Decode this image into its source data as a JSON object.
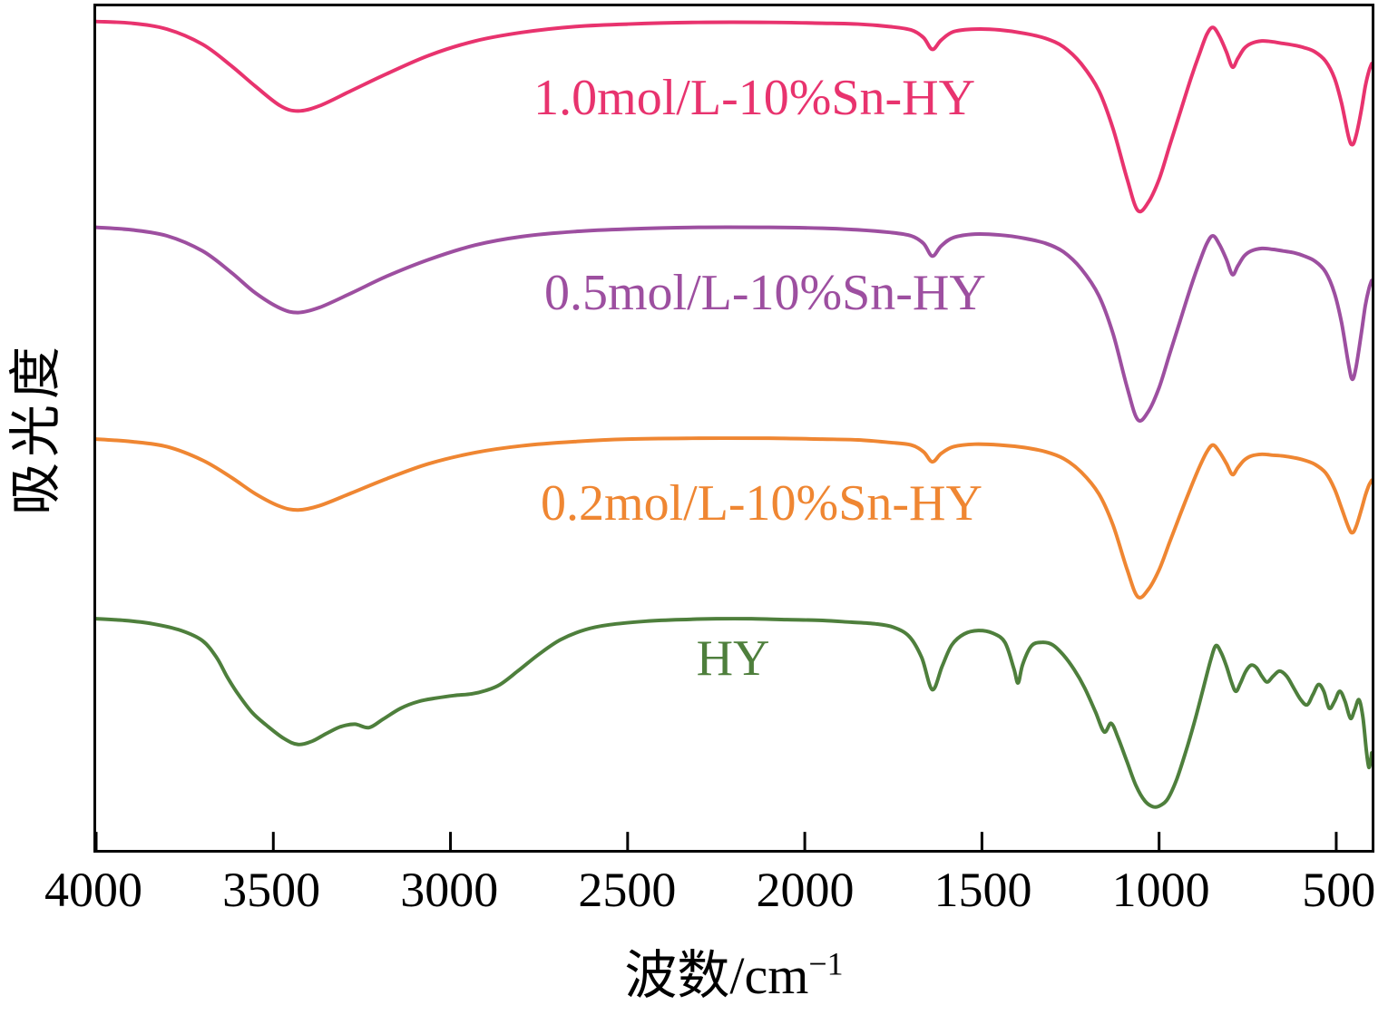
{
  "figure": {
    "background": "#ffffff",
    "border_color": "#000000",
    "description": "Stacked FTIR absorbance spectra of HY zeolite and Sn-modified HY samples"
  },
  "chart_data": {
    "type": "line",
    "title": "",
    "xlabel": "波数/cm⁻¹",
    "xlabel_base": "波数/cm",
    "xlabel_sup": "−1",
    "ylabel": "吸光度",
    "x_range": [
      4000,
      400
    ],
    "x_axis_reversed": true,
    "x_ticks": [
      4000,
      3500,
      3000,
      2500,
      2000,
      1500,
      1000,
      500
    ],
    "y_axis": "arbitrary units, no tick labels (vertically offset spectra)",
    "ylim": [
      0,
      100
    ],
    "grid": false,
    "legend_position": "inline colored labels above each curve",
    "series": [
      {
        "id": "1-0-sn-hy",
        "name": "1.0mol/L-10%Sn-HY",
        "color": "#e8336e",
        "label_pos": [
          2150,
          89.2
        ],
        "points": [
          [
            4000,
            98.2
          ],
          [
            3900,
            98.0
          ],
          [
            3800,
            97.3
          ],
          [
            3700,
            95.5
          ],
          [
            3620,
            93.0
          ],
          [
            3550,
            90.5
          ],
          [
            3480,
            88.2
          ],
          [
            3430,
            87.6
          ],
          [
            3370,
            88.2
          ],
          [
            3280,
            90.0
          ],
          [
            3180,
            92.0
          ],
          [
            3060,
            94.2
          ],
          [
            2930,
            95.9
          ],
          [
            2800,
            96.9
          ],
          [
            2650,
            97.6
          ],
          [
            2500,
            97.9
          ],
          [
            2300,
            98.1
          ],
          [
            2100,
            98.1
          ],
          [
            1950,
            98.0
          ],
          [
            1850,
            97.9
          ],
          [
            1760,
            97.6
          ],
          [
            1700,
            97.2
          ],
          [
            1665,
            96.3
          ],
          [
            1640,
            94.9
          ],
          [
            1615,
            96.0
          ],
          [
            1580,
            97.0
          ],
          [
            1520,
            97.3
          ],
          [
            1450,
            97.2
          ],
          [
            1380,
            96.8
          ],
          [
            1320,
            96.2
          ],
          [
            1270,
            95.2
          ],
          [
            1220,
            93.2
          ],
          [
            1170,
            90.0
          ],
          [
            1130,
            85.5
          ],
          [
            1090,
            79.5
          ],
          [
            1060,
            75.8
          ],
          [
            1030,
            76.8
          ],
          [
            1000,
            79.5
          ],
          [
            970,
            83.5
          ],
          [
            940,
            87.5
          ],
          [
            910,
            91.5
          ],
          [
            885,
            94.5
          ],
          [
            865,
            96.7
          ],
          [
            848,
            97.5
          ],
          [
            830,
            96.5
          ],
          [
            810,
            94.6
          ],
          [
            793,
            92.8
          ],
          [
            778,
            93.8
          ],
          [
            760,
            95.0
          ],
          [
            740,
            95.6
          ],
          [
            710,
            95.9
          ],
          [
            680,
            95.8
          ],
          [
            650,
            95.6
          ],
          [
            620,
            95.4
          ],
          [
            590,
            95.1
          ],
          [
            560,
            94.6
          ],
          [
            530,
            93.5
          ],
          [
            505,
            91.5
          ],
          [
            485,
            88.5
          ],
          [
            465,
            84.5
          ],
          [
            455,
            83.6
          ],
          [
            445,
            84.5
          ],
          [
            430,
            87.5
          ],
          [
            418,
            90.5
          ],
          [
            408,
            92.3
          ],
          [
            400,
            93.2
          ]
        ]
      },
      {
        "id": "0-5-sn-hy",
        "name": "0.5mol/L-10%Sn-HY",
        "color": "#9d4fa0",
        "label_pos": [
          2120,
          66.2
        ],
        "points": [
          [
            4000,
            73.8
          ],
          [
            3900,
            73.5
          ],
          [
            3800,
            72.8
          ],
          [
            3700,
            71.0
          ],
          [
            3620,
            68.5
          ],
          [
            3550,
            66.0
          ],
          [
            3480,
            64.2
          ],
          [
            3430,
            63.7
          ],
          [
            3370,
            64.3
          ],
          [
            3280,
            66.0
          ],
          [
            3180,
            68.0
          ],
          [
            3060,
            70.0
          ],
          [
            2930,
            71.7
          ],
          [
            2800,
            72.7
          ],
          [
            2650,
            73.3
          ],
          [
            2500,
            73.6
          ],
          [
            2300,
            73.8
          ],
          [
            2100,
            73.8
          ],
          [
            1950,
            73.7
          ],
          [
            1850,
            73.5
          ],
          [
            1760,
            73.2
          ],
          [
            1700,
            72.8
          ],
          [
            1665,
            71.9
          ],
          [
            1640,
            70.4
          ],
          [
            1615,
            71.6
          ],
          [
            1580,
            72.6
          ],
          [
            1520,
            73.0
          ],
          [
            1450,
            72.9
          ],
          [
            1380,
            72.5
          ],
          [
            1320,
            71.9
          ],
          [
            1270,
            70.9
          ],
          [
            1220,
            68.9
          ],
          [
            1170,
            65.7
          ],
          [
            1130,
            61.2
          ],
          [
            1090,
            54.8
          ],
          [
            1060,
            51.0
          ],
          [
            1030,
            52.0
          ],
          [
            1000,
            54.8
          ],
          [
            970,
            58.8
          ],
          [
            940,
            62.8
          ],
          [
            910,
            66.8
          ],
          [
            885,
            69.8
          ],
          [
            865,
            71.9
          ],
          [
            848,
            72.8
          ],
          [
            830,
            71.8
          ],
          [
            810,
            70.0
          ],
          [
            793,
            68.2
          ],
          [
            778,
            69.2
          ],
          [
            760,
            70.4
          ],
          [
            740,
            71.0
          ],
          [
            710,
            71.3
          ],
          [
            680,
            71.2
          ],
          [
            650,
            71.0
          ],
          [
            620,
            70.8
          ],
          [
            590,
            70.4
          ],
          [
            560,
            69.8
          ],
          [
            530,
            68.5
          ],
          [
            505,
            66.0
          ],
          [
            485,
            62.5
          ],
          [
            465,
            57.5
          ],
          [
            455,
            55.8
          ],
          [
            445,
            57.0
          ],
          [
            430,
            61.0
          ],
          [
            418,
            64.5
          ],
          [
            408,
            66.5
          ],
          [
            400,
            67.5
          ]
        ]
      },
      {
        "id": "0-2-sn-hy",
        "name": "0.2mol/L-10%Sn-HY",
        "color": "#ef8632",
        "label_pos": [
          2130,
          41.5
        ],
        "points": [
          [
            4000,
            48.7
          ],
          [
            3900,
            48.4
          ],
          [
            3800,
            47.8
          ],
          [
            3700,
            46.2
          ],
          [
            3620,
            44.2
          ],
          [
            3550,
            42.2
          ],
          [
            3480,
            40.7
          ],
          [
            3430,
            40.3
          ],
          [
            3370,
            40.8
          ],
          [
            3280,
            42.3
          ],
          [
            3180,
            44.0
          ],
          [
            3060,
            45.8
          ],
          [
            2930,
            47.1
          ],
          [
            2800,
            47.9
          ],
          [
            2650,
            48.4
          ],
          [
            2500,
            48.7
          ],
          [
            2300,
            48.8
          ],
          [
            2100,
            48.8
          ],
          [
            1950,
            48.7
          ],
          [
            1850,
            48.6
          ],
          [
            1760,
            48.3
          ],
          [
            1700,
            48.0
          ],
          [
            1665,
            47.2
          ],
          [
            1640,
            46.0
          ],
          [
            1615,
            47.0
          ],
          [
            1580,
            47.8
          ],
          [
            1520,
            48.1
          ],
          [
            1450,
            48.0
          ],
          [
            1380,
            47.7
          ],
          [
            1320,
            47.2
          ],
          [
            1270,
            46.4
          ],
          [
            1220,
            44.8
          ],
          [
            1170,
            42.2
          ],
          [
            1130,
            38.5
          ],
          [
            1090,
            33.2
          ],
          [
            1060,
            30.0
          ],
          [
            1030,
            30.9
          ],
          [
            1000,
            33.2
          ],
          [
            970,
            36.5
          ],
          [
            940,
            39.8
          ],
          [
            910,
            43.0
          ],
          [
            885,
            45.5
          ],
          [
            865,
            47.2
          ],
          [
            848,
            48.0
          ],
          [
            830,
            47.2
          ],
          [
            810,
            45.8
          ],
          [
            793,
            44.5
          ],
          [
            778,
            45.3
          ],
          [
            760,
            46.2
          ],
          [
            740,
            46.7
          ],
          [
            710,
            46.9
          ],
          [
            680,
            46.8
          ],
          [
            650,
            46.7
          ],
          [
            620,
            46.5
          ],
          [
            590,
            46.2
          ],
          [
            560,
            45.7
          ],
          [
            530,
            44.7
          ],
          [
            505,
            42.8
          ],
          [
            485,
            40.5
          ],
          [
            465,
            38.2
          ],
          [
            455,
            37.6
          ],
          [
            445,
            38.2
          ],
          [
            430,
            40.2
          ],
          [
            418,
            42.0
          ],
          [
            408,
            43.2
          ],
          [
            400,
            43.8
          ]
        ]
      },
      {
        "id": "hy",
        "name": "HY",
        "color": "#4e7f3c",
        "label_pos": [
          2210,
          23.2
        ],
        "points": [
          [
            4000,
            27.4
          ],
          [
            3920,
            27.2
          ],
          [
            3840,
            26.8
          ],
          [
            3760,
            26.0
          ],
          [
            3700,
            24.8
          ],
          [
            3660,
            22.8
          ],
          [
            3630,
            20.5
          ],
          [
            3600,
            18.5
          ],
          [
            3560,
            16.3
          ],
          [
            3520,
            14.8
          ],
          [
            3470,
            13.2
          ],
          [
            3430,
            12.5
          ],
          [
            3390,
            12.9
          ],
          [
            3350,
            13.8
          ],
          [
            3310,
            14.6
          ],
          [
            3270,
            14.9
          ],
          [
            3230,
            14.5
          ],
          [
            3190,
            15.5
          ],
          [
            3140,
            16.8
          ],
          [
            3090,
            17.6
          ],
          [
            3040,
            18.0
          ],
          [
            2990,
            18.3
          ],
          [
            2940,
            18.5
          ],
          [
            2900,
            18.9
          ],
          [
            2860,
            19.6
          ],
          [
            2810,
            21.2
          ],
          [
            2750,
            23.2
          ],
          [
            2690,
            24.9
          ],
          [
            2620,
            26.1
          ],
          [
            2550,
            26.7
          ],
          [
            2450,
            27.1
          ],
          [
            2350,
            27.3
          ],
          [
            2250,
            27.4
          ],
          [
            2150,
            27.4
          ],
          [
            2050,
            27.3
          ],
          [
            1950,
            27.2
          ],
          [
            1870,
            27.0
          ],
          [
            1800,
            26.8
          ],
          [
            1750,
            26.4
          ],
          [
            1705,
            25.3
          ],
          [
            1670,
            22.8
          ],
          [
            1640,
            19.0
          ],
          [
            1612,
            21.8
          ],
          [
            1585,
            24.3
          ],
          [
            1550,
            25.6
          ],
          [
            1510,
            26.0
          ],
          [
            1470,
            25.7
          ],
          [
            1435,
            24.6
          ],
          [
            1410,
            21.5
          ],
          [
            1398,
            19.8
          ],
          [
            1385,
            22.0
          ],
          [
            1360,
            24.2
          ],
          [
            1330,
            24.6
          ],
          [
            1300,
            24.3
          ],
          [
            1270,
            23.1
          ],
          [
            1240,
            21.4
          ],
          [
            1210,
            19.2
          ],
          [
            1180,
            16.4
          ],
          [
            1155,
            14.0
          ],
          [
            1135,
            15.0
          ],
          [
            1115,
            13.2
          ],
          [
            1090,
            10.4
          ],
          [
            1065,
            7.6
          ],
          [
            1040,
            5.8
          ],
          [
            1015,
            5.1
          ],
          [
            995,
            5.3
          ],
          [
            975,
            6.1
          ],
          [
            950,
            8.4
          ],
          [
            925,
            11.6
          ],
          [
            900,
            15.2
          ],
          [
            875,
            19.2
          ],
          [
            855,
            22.4
          ],
          [
            840,
            24.2
          ],
          [
            825,
            23.4
          ],
          [
            810,
            21.8
          ],
          [
            795,
            19.8
          ],
          [
            783,
            18.8
          ],
          [
            770,
            19.8
          ],
          [
            755,
            21.2
          ],
          [
            740,
            21.9
          ],
          [
            725,
            21.6
          ],
          [
            710,
            20.6
          ],
          [
            695,
            19.9
          ],
          [
            678,
            20.6
          ],
          [
            660,
            21.2
          ],
          [
            640,
            20.6
          ],
          [
            620,
            19.2
          ],
          [
            600,
            17.8
          ],
          [
            582,
            17.2
          ],
          [
            566,
            18.4
          ],
          [
            550,
            19.6
          ],
          [
            535,
            18.8
          ],
          [
            520,
            16.8
          ],
          [
            505,
            17.6
          ],
          [
            490,
            18.8
          ],
          [
            475,
            17.6
          ],
          [
            460,
            15.6
          ],
          [
            448,
            16.6
          ],
          [
            436,
            17.8
          ],
          [
            425,
            15.8
          ],
          [
            415,
            11.8
          ],
          [
            408,
            9.8
          ],
          [
            402,
            10.8
          ],
          [
            400,
            11.5
          ]
        ]
      }
    ]
  }
}
